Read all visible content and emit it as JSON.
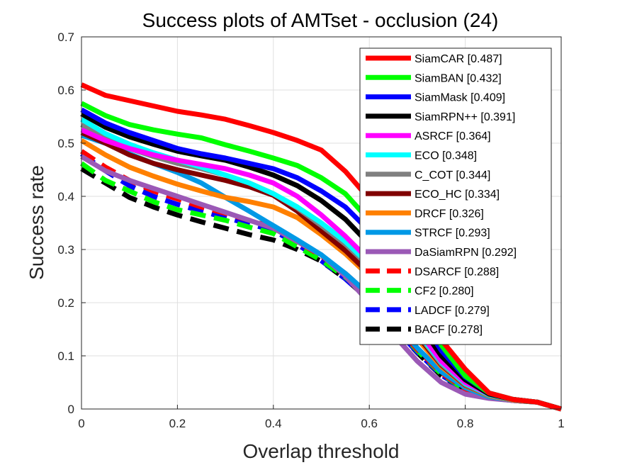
{
  "chart_data": {
    "type": "line",
    "title": "Success plots of AMTset - occlusion (24)",
    "xlabel": "Overlap threshold",
    "ylabel": "Success rate",
    "xlim": [
      0,
      1
    ],
    "ylim": [
      0,
      0.7
    ],
    "xticks": [
      "0",
      "0.2",
      "0.4",
      "0.6",
      "0.8",
      "1"
    ],
    "yticks": [
      "0",
      "0.1",
      "0.2",
      "0.3",
      "0.4",
      "0.5",
      "0.6",
      "0.7"
    ],
    "grid": true,
    "legend_position": "top-right",
    "x": [
      0,
      0.05,
      0.1,
      0.15,
      0.2,
      0.25,
      0.3,
      0.35,
      0.4,
      0.45,
      0.5,
      0.55,
      0.6,
      0.65,
      0.7,
      0.75,
      0.8,
      0.85,
      0.9,
      0.95,
      1.0
    ],
    "series": [
      {
        "name": "SiamCAR [0.487]",
        "color": "#ff0000",
        "dash": false,
        "values": [
          0.61,
          0.59,
          0.58,
          0.57,
          0.56,
          0.553,
          0.545,
          0.533,
          0.52,
          0.505,
          0.487,
          0.447,
          0.395,
          0.32,
          0.22,
          0.13,
          0.075,
          0.03,
          0.018,
          0.013,
          0.0
        ]
      },
      {
        "name": "SiamBAN [0.432]",
        "color": "#00ff00",
        "dash": false,
        "values": [
          0.575,
          0.552,
          0.535,
          0.525,
          0.517,
          0.51,
          0.497,
          0.485,
          0.472,
          0.458,
          0.435,
          0.405,
          0.355,
          0.285,
          0.2,
          0.12,
          0.062,
          0.03,
          0.018,
          0.013,
          0.0
        ]
      },
      {
        "name": "SiamMask [0.409]",
        "color": "#0000ff",
        "dash": false,
        "values": [
          0.563,
          0.538,
          0.52,
          0.505,
          0.49,
          0.48,
          0.472,
          0.462,
          0.452,
          0.435,
          0.41,
          0.38,
          0.335,
          0.26,
          0.18,
          0.11,
          0.06,
          0.03,
          0.018,
          0.013,
          0.0
        ]
      },
      {
        "name": "SiamRPN++ [0.391]",
        "color": "#000000",
        "dash": false,
        "values": [
          0.555,
          0.53,
          0.512,
          0.498,
          0.485,
          0.476,
          0.468,
          0.455,
          0.44,
          0.42,
          0.392,
          0.357,
          0.31,
          0.24,
          0.165,
          0.1,
          0.055,
          0.028,
          0.018,
          0.013,
          0.0
        ]
      },
      {
        "name": "ASRCF [0.364]",
        "color": "#ff00ff",
        "dash": false,
        "values": [
          0.525,
          0.505,
          0.49,
          0.478,
          0.468,
          0.46,
          0.452,
          0.44,
          0.425,
          0.4,
          0.365,
          0.325,
          0.28,
          0.215,
          0.15,
          0.09,
          0.05,
          0.028,
          0.018,
          0.013,
          0.0
        ]
      },
      {
        "name": "ECO [0.348]",
        "color": "#00ffff",
        "dash": false,
        "values": [
          0.545,
          0.518,
          0.498,
          0.482,
          0.468,
          0.455,
          0.44,
          0.425,
          0.405,
          0.38,
          0.35,
          0.315,
          0.272,
          0.21,
          0.145,
          0.088,
          0.048,
          0.027,
          0.018,
          0.013,
          0.0
        ]
      },
      {
        "name": "C_COT [0.344]",
        "color": "#808080",
        "dash": false,
        "values": [
          0.535,
          0.51,
          0.49,
          0.475,
          0.462,
          0.452,
          0.44,
          0.425,
          0.405,
          0.378,
          0.345,
          0.31,
          0.268,
          0.205,
          0.142,
          0.085,
          0.046,
          0.026,
          0.018,
          0.013,
          0.0
        ]
      },
      {
        "name": "ECO_HC [0.334]",
        "color": "#800000",
        "dash": false,
        "values": [
          0.52,
          0.5,
          0.478,
          0.462,
          0.45,
          0.44,
          0.43,
          0.418,
          0.402,
          0.372,
          0.335,
          0.298,
          0.255,
          0.197,
          0.138,
          0.083,
          0.045,
          0.026,
          0.018,
          0.013,
          0.0
        ]
      },
      {
        "name": "DRCF [0.326]",
        "color": "#ff8000",
        "dash": false,
        "values": [
          0.505,
          0.478,
          0.455,
          0.438,
          0.423,
          0.41,
          0.398,
          0.39,
          0.38,
          0.36,
          0.328,
          0.292,
          0.25,
          0.19,
          0.132,
          0.08,
          0.044,
          0.025,
          0.017,
          0.013,
          0.0
        ]
      },
      {
        "name": "STRCF [0.293]",
        "color": "#0099e6",
        "dash": false,
        "values": [
          0.515,
          0.5,
          0.48,
          0.462,
          0.445,
          0.425,
          0.398,
          0.372,
          0.345,
          0.318,
          0.29,
          0.255,
          0.215,
          0.165,
          0.115,
          0.07,
          0.04,
          0.023,
          0.017,
          0.013,
          0.0
        ]
      },
      {
        "name": "DaSiamRPN [0.292]",
        "color": "#9b59b6",
        "dash": false,
        "values": [
          0.475,
          0.448,
          0.43,
          0.415,
          0.4,
          0.385,
          0.37,
          0.355,
          0.34,
          0.315,
          0.29,
          0.25,
          0.2,
          0.14,
          0.09,
          0.05,
          0.028,
          0.02,
          0.016,
          0.013,
          0.0
        ]
      },
      {
        "name": "DSARCF [0.288]",
        "color": "#ff0000",
        "dash": true,
        "values": [
          0.485,
          0.455,
          0.43,
          0.41,
          0.395,
          0.38,
          0.368,
          0.355,
          0.342,
          0.315,
          0.288,
          0.255,
          0.215,
          0.162,
          0.112,
          0.068,
          0.037,
          0.022,
          0.016,
          0.013,
          0.0
        ]
      },
      {
        "name": "CF2 [0.280]",
        "color": "#00ff00",
        "dash": true,
        "values": [
          0.462,
          0.43,
          0.41,
          0.39,
          0.375,
          0.365,
          0.355,
          0.342,
          0.33,
          0.305,
          0.28,
          0.248,
          0.21,
          0.158,
          0.11,
          0.066,
          0.036,
          0.022,
          0.016,
          0.013,
          0.0
        ]
      },
      {
        "name": "LADCF [0.279]",
        "color": "#0000ff",
        "dash": true,
        "values": [
          0.48,
          0.448,
          0.42,
          0.4,
          0.385,
          0.372,
          0.36,
          0.348,
          0.336,
          0.31,
          0.279,
          0.245,
          0.205,
          0.155,
          0.107,
          0.064,
          0.035,
          0.021,
          0.016,
          0.013,
          0.0
        ]
      },
      {
        "name": "BACF [0.278]",
        "color": "#000000",
        "dash": true,
        "values": [
          0.452,
          0.425,
          0.398,
          0.38,
          0.365,
          0.352,
          0.34,
          0.328,
          0.318,
          0.3,
          0.278,
          0.245,
          0.205,
          0.155,
          0.106,
          0.063,
          0.034,
          0.021,
          0.016,
          0.013,
          0.0
        ]
      }
    ]
  }
}
